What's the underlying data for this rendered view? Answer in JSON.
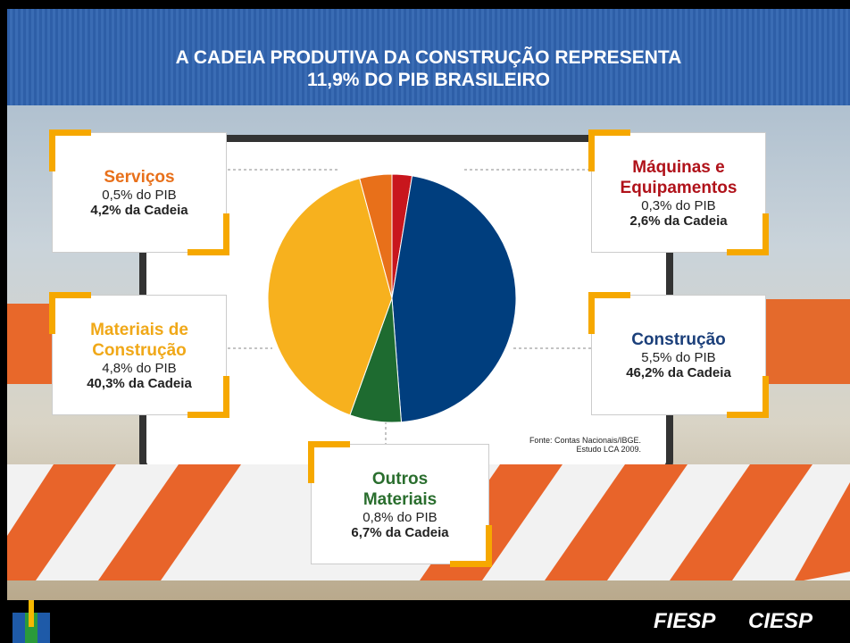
{
  "chart_data": {
    "type": "pie",
    "title": [
      "A CADEIA PRODUTIVA DA CONSTRUÇÃO REPRESENTA",
      "11,9% DO PIB BRASILEIRO"
    ],
    "categories": [
      "Máquinas e Equipamentos",
      "Construção",
      "Outros Materiais",
      "Materiais de Construção",
      "Serviços"
    ],
    "series": [
      {
        "values": [
          2.6,
          46.2,
          6.7,
          40.3,
          4.2
        ],
        "value_labels": [
          "2,6% da Cadeia",
          "46,2% da Cadeia",
          "6,7% da Cadeia",
          "40,3% da Cadeia",
          "4,2% da Cadeia"
        ],
        "colors": [
          "#c8161d",
          "#003e7e",
          "#1e6b30",
          "#f7b11e",
          "#e8701a"
        ]
      }
    ],
    "pib_labels": [
      "0,3% do PIB",
      "5,5% do PIB",
      "0,8% do PIB",
      "4,8% do PIB",
      "0,5% do PIB"
    ],
    "label_colors": [
      "#b0121a",
      "#1b3f7a",
      "#2a6e2e",
      "#f0a818",
      "#e8701a"
    ],
    "source": "Fonte: Contas Nacionais/IBGE. Estudo LCA 2009."
  },
  "footer": {
    "logos": [
      "FIESP",
      "CIESP"
    ]
  }
}
